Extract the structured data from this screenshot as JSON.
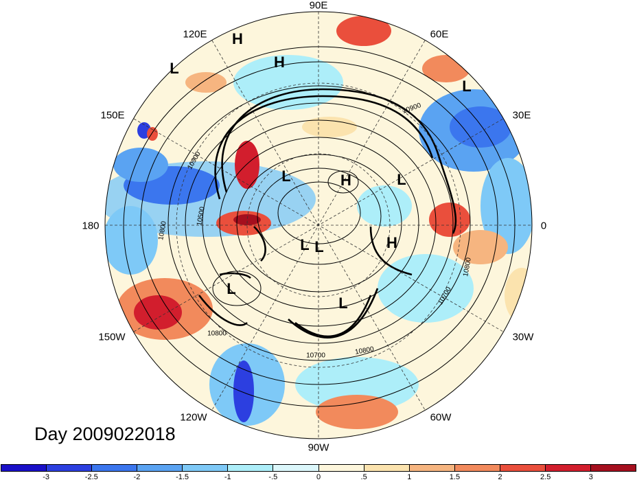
{
  "map": {
    "projection": "north-polar-stereographic",
    "longitude_labels": [
      "90E",
      "60E",
      "30E",
      "0",
      "30W",
      "60W",
      "90W",
      "120W",
      "150W",
      "180",
      "150E",
      "120E"
    ],
    "pressure_centers": [
      "H",
      "H",
      "L",
      "L",
      "L",
      "L",
      "H",
      "L",
      "L",
      "H",
      "L",
      "L"
    ],
    "contour_labels": [
      "10900",
      "10900",
      "10500",
      "10800",
      "10800",
      "10800",
      "10700",
      "10700",
      "10800"
    ],
    "colors": {
      "contour": "#000000",
      "graticule": "#333333"
    }
  },
  "footer": {
    "day_label": "Day 2009022018"
  },
  "colorbar": {
    "colors": [
      "#1a10c8",
      "#2c3fe0",
      "#3b76ee",
      "#5aa3f2",
      "#7ec9f7",
      "#adeef9",
      "#dcf7fb",
      "#fdf6dc",
      "#fbe3ae",
      "#f6b580",
      "#f28a5c",
      "#ea4f3c",
      "#d21e2d",
      "#a50f1e"
    ],
    "labels": [
      "-3",
      "-2.5",
      "-2",
      "-1.5",
      "-1",
      "-.5",
      "0",
      ".5",
      "1",
      "1.5",
      "2",
      "2.5",
      "3"
    ]
  }
}
